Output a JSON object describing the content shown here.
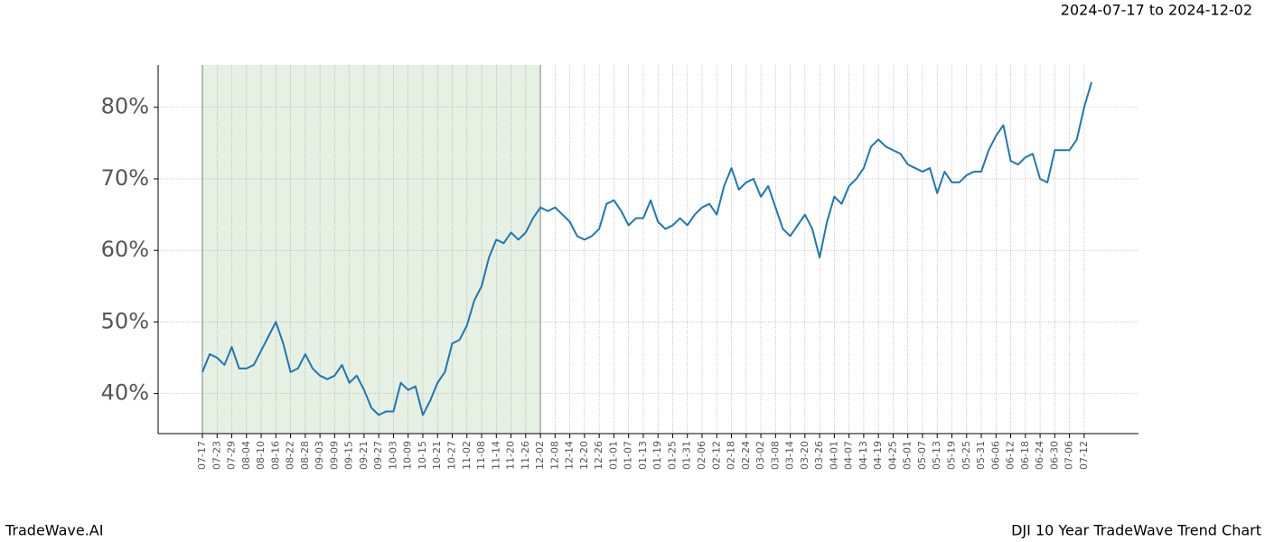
{
  "chart_data": {
    "type": "line",
    "title": "2024-07-17 to 2024-12-02",
    "footer_left": "TradeWave.AI",
    "footer_right": "DJI 10 Year TradeWave Trend Chart",
    "x": [
      "07-17",
      "07-20",
      "07-23",
      "07-26",
      "07-29",
      "08-01",
      "08-04",
      "08-07",
      "08-10",
      "08-13",
      "08-16",
      "08-19",
      "08-22",
      "08-25",
      "08-28",
      "08-31",
      "09-03",
      "09-06",
      "09-09",
      "09-12",
      "09-15",
      "09-18",
      "09-21",
      "09-24",
      "09-27",
      "09-30",
      "10-03",
      "10-06",
      "10-09",
      "10-12",
      "10-15",
      "10-18",
      "10-21",
      "10-24",
      "10-27",
      "10-30",
      "11-02",
      "11-05",
      "11-08",
      "11-11",
      "11-14",
      "11-17",
      "11-20",
      "11-23",
      "11-26",
      "11-29",
      "12-02",
      "12-05",
      "12-08",
      "12-11",
      "12-14",
      "12-17",
      "12-20",
      "12-23",
      "12-26",
      "12-29",
      "01-01",
      "01-04",
      "01-07",
      "01-10",
      "01-13",
      "01-16",
      "01-19",
      "01-22",
      "01-25",
      "01-28",
      "01-31",
      "02-03",
      "02-06",
      "02-09",
      "02-12",
      "02-15",
      "02-18",
      "02-21",
      "02-24",
      "02-27",
      "03-02",
      "03-05",
      "03-08",
      "03-11",
      "03-14",
      "03-17",
      "03-20",
      "03-23",
      "03-26",
      "03-29",
      "04-01",
      "04-04",
      "04-07",
      "04-10",
      "04-13",
      "04-16",
      "04-19",
      "04-22",
      "04-25",
      "04-28",
      "05-01",
      "05-04",
      "05-07",
      "05-10",
      "05-13",
      "05-16",
      "05-19",
      "05-22",
      "05-25",
      "05-28",
      "05-31",
      "06-03",
      "06-06",
      "06-09",
      "06-12",
      "06-15",
      "06-18",
      "06-21",
      "06-24",
      "06-27",
      "06-30",
      "07-03",
      "07-06",
      "07-09",
      "07-12",
      "07-15"
    ],
    "series": [
      {
        "color": "#1f77b4",
        "values": [
          43,
          45.5,
          45,
          44,
          46.5,
          43.5,
          43.5,
          44,
          46,
          48,
          50,
          47,
          43,
          43.5,
          45.5,
          43.5,
          42.5,
          42,
          42.5,
          44,
          41.5,
          42.5,
          40.5,
          38,
          37,
          37.5,
          37.5,
          41.5,
          40.5,
          41,
          37,
          39,
          41.5,
          43,
          47,
          47.5,
          49.5,
          53,
          55,
          59,
          61.5,
          61,
          62.5,
          61.5,
          62.5,
          64.5,
          66,
          65.5,
          66,
          65,
          64,
          62,
          61.5,
          62,
          63,
          66.5,
          67,
          65.5,
          63.5,
          64.5,
          64.5,
          67,
          64,
          63,
          63.5,
          64.5,
          63.5,
          65,
          66,
          66.5,
          65,
          69,
          71.5,
          68.5,
          69.5,
          70,
          67.5,
          69,
          66,
          63,
          62,
          63.5,
          65,
          63,
          59,
          64,
          67.5,
          66.5,
          69,
          70,
          71.5,
          74.5,
          75.5,
          74.5,
          74,
          73.5,
          72,
          71.5,
          71,
          71.5,
          68,
          71,
          69.5,
          69.5,
          70.5,
          71,
          71,
          74,
          76,
          77.5,
          72.5,
          72,
          73,
          73.5,
          70,
          69.5,
          74,
          74,
          74,
          75.5,
          80,
          83.5
        ]
      }
    ],
    "xticks": [
      "07-17",
      "07-23",
      "07-29",
      "08-04",
      "08-10",
      "08-16",
      "08-22",
      "08-28",
      "09-03",
      "09-09",
      "09-15",
      "09-21",
      "09-27",
      "10-03",
      "10-09",
      "10-15",
      "10-21",
      "10-27",
      "11-02",
      "11-08",
      "11-14",
      "11-20",
      "11-26",
      "12-02",
      "12-08",
      "12-14",
      "12-20",
      "12-26",
      "01-01",
      "01-07",
      "01-13",
      "01-19",
      "01-25",
      "01-31",
      "02-06",
      "02-12",
      "02-18",
      "02-24",
      "03-02",
      "03-08",
      "03-14",
      "03-20",
      "03-26",
      "04-01",
      "04-07",
      "04-13",
      "04-19",
      "04-25",
      "05-01",
      "05-07",
      "05-13",
      "05-19",
      "05-25",
      "05-31",
      "06-06",
      "06-12",
      "06-18",
      "06-24",
      "06-30",
      "07-06",
      "07-12"
    ],
    "shaded_span": [
      "07-17",
      "12-02"
    ],
    "shade_color": "#e6f0e3",
    "ylim": [
      34.4,
      85.9
    ],
    "yticks": [
      {
        "value": 40,
        "label": "40%"
      },
      {
        "value": 50,
        "label": "50%"
      },
      {
        "value": 60,
        "label": "60%"
      },
      {
        "value": 70,
        "label": "70%"
      },
      {
        "value": 80,
        "label": "80%"
      }
    ],
    "grid": true
  }
}
